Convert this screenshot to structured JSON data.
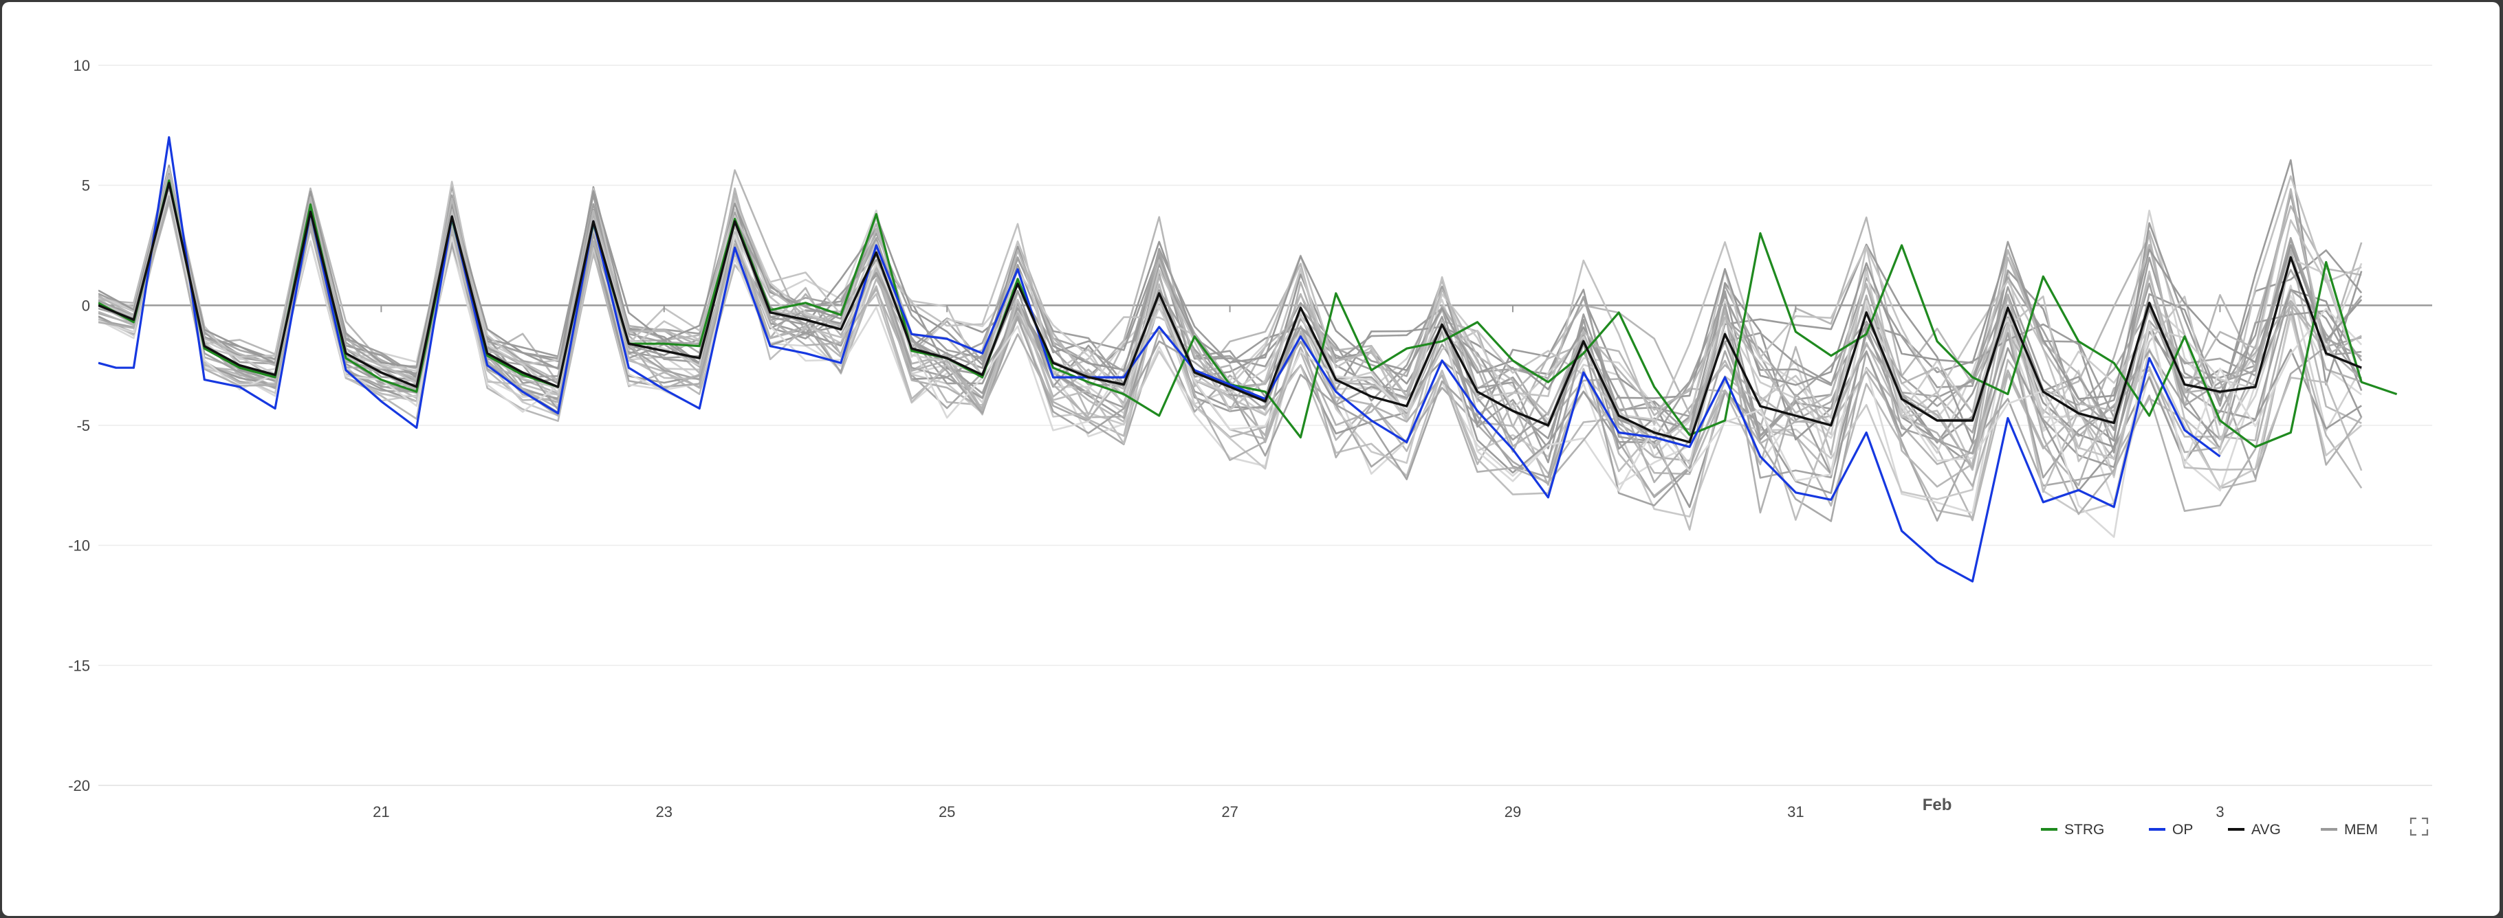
{
  "chart_data": {
    "type": "line",
    "title": "",
    "xlabel": "",
    "ylabel": "",
    "ylim": [
      -20,
      10
    ],
    "yticks": [
      10,
      5,
      0,
      -5,
      -10,
      -15,
      -20
    ],
    "x_start": "2024-01-19",
    "x_end": "2024-02-04",
    "xticks": [
      {
        "date": "2024-01-21",
        "label": "21"
      },
      {
        "date": "2024-01-23",
        "label": "23"
      },
      {
        "date": "2024-01-25",
        "label": "25"
      },
      {
        "date": "2024-01-27",
        "label": "27"
      },
      {
        "date": "2024-01-29",
        "label": "29"
      },
      {
        "date": "2024-01-31",
        "label": "31"
      },
      {
        "date": "2024-02-03",
        "label": "3"
      }
    ],
    "month_label": {
      "date": "2024-02-01",
      "label": "Feb"
    },
    "grid": true,
    "zero_line": true,
    "legend_position": "bottom-right",
    "legend": [
      {
        "name": "STRG",
        "color": "#1f8a1f"
      },
      {
        "name": "OP",
        "color": "#1638e0"
      },
      {
        "name": "AVG",
        "color": "#111111"
      },
      {
        "name": "MEM",
        "color": "#9a9a9a"
      }
    ],
    "series": [
      {
        "name": "STRG",
        "color": "#1f8a1f",
        "width": 3.2,
        "points": [
          [
            "2024-01-19T00:00",
            0.1
          ],
          [
            "2024-01-19T06:00",
            -0.7
          ],
          [
            "2024-01-19T12:00",
            5.2
          ],
          [
            "2024-01-19T18:00",
            -1.8
          ],
          [
            "2024-01-20T00:00",
            -2.6
          ],
          [
            "2024-01-20T06:00",
            -3.0
          ],
          [
            "2024-01-20T12:00",
            4.2
          ],
          [
            "2024-01-20T18:00",
            -2.2
          ],
          [
            "2024-01-21T00:00",
            -3.1
          ],
          [
            "2024-01-21T06:00",
            -3.6
          ],
          [
            "2024-01-21T12:00",
            3.6
          ],
          [
            "2024-01-21T18:00",
            -2.1
          ],
          [
            "2024-01-22T00:00",
            -2.9
          ],
          [
            "2024-01-22T06:00",
            -3.4
          ],
          [
            "2024-01-22T12:00",
            3.4
          ],
          [
            "2024-01-22T18:00",
            -1.6
          ],
          [
            "2024-01-23T00:00",
            -1.6
          ],
          [
            "2024-01-23T06:00",
            -1.7
          ],
          [
            "2024-01-23T12:00",
            3.6
          ],
          [
            "2024-01-23T18:00",
            -0.2
          ],
          [
            "2024-01-24T00:00",
            0.1
          ],
          [
            "2024-01-24T06:00",
            -0.4
          ],
          [
            "2024-01-24T12:00",
            3.8
          ],
          [
            "2024-01-24T18:00",
            -1.9
          ],
          [
            "2024-01-25T00:00",
            -2.2
          ],
          [
            "2024-01-25T06:00",
            -3.0
          ],
          [
            "2024-01-25T12:00",
            1.1
          ],
          [
            "2024-01-25T18:00",
            -2.6
          ],
          [
            "2024-01-26T00:00",
            -3.2
          ],
          [
            "2024-01-26T06:00",
            -3.7
          ],
          [
            "2024-01-26T12:00",
            -4.6
          ],
          [
            "2024-01-26T18:00",
            -1.3
          ],
          [
            "2024-01-27T00:00",
            -3.3
          ],
          [
            "2024-01-27T06:00",
            -3.6
          ],
          [
            "2024-01-27T12:00",
            -5.5
          ],
          [
            "2024-01-27T18:00",
            0.5
          ],
          [
            "2024-01-28T00:00",
            -2.7
          ],
          [
            "2024-01-28T06:00",
            -1.8
          ],
          [
            "2024-01-28T12:00",
            -1.5
          ],
          [
            "2024-01-28T18:00",
            -0.7
          ],
          [
            "2024-01-29T00:00",
            -2.3
          ],
          [
            "2024-01-29T06:00",
            -3.2
          ],
          [
            "2024-01-29T12:00",
            -2.0
          ],
          [
            "2024-01-29T18:00",
            -0.3
          ],
          [
            "2024-01-30T00:00",
            -3.4
          ],
          [
            "2024-01-30T06:00",
            -5.4
          ],
          [
            "2024-01-30T12:00",
            -4.8
          ],
          [
            "2024-01-30T18:00",
            3.0
          ],
          [
            "2024-01-31T00:00",
            -1.1
          ],
          [
            "2024-01-31T06:00",
            -2.1
          ],
          [
            "2024-01-31T12:00",
            -1.2
          ],
          [
            "2024-01-31T18:00",
            2.5
          ],
          [
            "2024-02-01T00:00",
            -1.5
          ],
          [
            "2024-02-01T06:00",
            -3.0
          ],
          [
            "2024-02-01T12:00",
            -3.7
          ],
          [
            "2024-02-01T18:00",
            1.2
          ],
          [
            "2024-02-02T00:00",
            -1.5
          ],
          [
            "2024-02-02T06:00",
            -2.4
          ],
          [
            "2024-02-02T12:00",
            -4.6
          ],
          [
            "2024-02-02T18:00",
            -1.3
          ],
          [
            "2024-02-03T00:00",
            -4.8
          ],
          [
            "2024-02-03T06:00",
            -5.9
          ],
          [
            "2024-02-03T12:00",
            -5.3
          ],
          [
            "2024-02-03T18:00",
            1.8
          ],
          [
            "2024-02-04T00:00",
            -3.2
          ],
          [
            "2024-02-04T06:00",
            -3.7
          ]
        ]
      },
      {
        "name": "OP",
        "color": "#1638e0",
        "width": 3.2,
        "points": [
          [
            "2024-01-19T00:00",
            -2.4
          ],
          [
            "2024-01-19T03:00",
            -2.6
          ],
          [
            "2024-01-19T06:00",
            -2.6
          ],
          [
            "2024-01-19T12:00",
            7.0
          ],
          [
            "2024-01-19T18:00",
            -3.1
          ],
          [
            "2024-01-20T00:00",
            -3.4
          ],
          [
            "2024-01-20T06:00",
            -4.3
          ],
          [
            "2024-01-20T12:00",
            3.9
          ],
          [
            "2024-01-20T18:00",
            -2.7
          ],
          [
            "2024-01-21T00:00",
            -4.0
          ],
          [
            "2024-01-21T06:00",
            -5.1
          ],
          [
            "2024-01-21T12:00",
            3.7
          ],
          [
            "2024-01-21T18:00",
            -2.5
          ],
          [
            "2024-01-22T00:00",
            -3.6
          ],
          [
            "2024-01-22T06:00",
            -4.5
          ],
          [
            "2024-01-22T12:00",
            3.5
          ],
          [
            "2024-01-22T18:00",
            -2.6
          ],
          [
            "2024-01-23T00:00",
            -3.5
          ],
          [
            "2024-01-23T06:00",
            -4.3
          ],
          [
            "2024-01-23T12:00",
            2.4
          ],
          [
            "2024-01-23T18:00",
            -1.7
          ],
          [
            "2024-01-24T00:00",
            -2.0
          ],
          [
            "2024-01-24T06:00",
            -2.4
          ],
          [
            "2024-01-24T12:00",
            2.5
          ],
          [
            "2024-01-24T18:00",
            -1.2
          ],
          [
            "2024-01-25T00:00",
            -1.4
          ],
          [
            "2024-01-25T06:00",
            -2.0
          ],
          [
            "2024-01-25T12:00",
            1.5
          ],
          [
            "2024-01-25T18:00",
            -3.0
          ],
          [
            "2024-01-26T00:00",
            -3.0
          ],
          [
            "2024-01-26T06:00",
            -3.0
          ],
          [
            "2024-01-26T12:00",
            -0.9
          ],
          [
            "2024-01-26T18:00",
            -2.7
          ],
          [
            "2024-01-27T00:00",
            -3.3
          ],
          [
            "2024-01-27T06:00",
            -3.9
          ],
          [
            "2024-01-27T12:00",
            -1.3
          ],
          [
            "2024-01-27T18:00",
            -3.6
          ],
          [
            "2024-01-28T00:00",
            -4.8
          ],
          [
            "2024-01-28T06:00",
            -5.7
          ],
          [
            "2024-01-28T12:00",
            -2.3
          ],
          [
            "2024-01-28T18:00",
            -4.4
          ],
          [
            "2024-01-29T00:00",
            -6.0
          ],
          [
            "2024-01-29T06:00",
            -8.0
          ],
          [
            "2024-01-29T12:00",
            -2.8
          ],
          [
            "2024-01-29T18:00",
            -5.3
          ],
          [
            "2024-01-30T00:00",
            -5.5
          ],
          [
            "2024-01-30T06:00",
            -5.9
          ],
          [
            "2024-01-30T12:00",
            -3.0
          ],
          [
            "2024-01-30T18:00",
            -6.3
          ],
          [
            "2024-01-31T00:00",
            -7.8
          ],
          [
            "2024-01-31T06:00",
            -8.1
          ],
          [
            "2024-01-31T12:00",
            -5.3
          ],
          [
            "2024-01-31T18:00",
            -9.4
          ],
          [
            "2024-02-01T00:00",
            -10.7
          ],
          [
            "2024-02-01T06:00",
            -11.5
          ],
          [
            "2024-02-01T12:00",
            -4.7
          ],
          [
            "2024-02-01T18:00",
            -8.2
          ],
          [
            "2024-02-02T00:00",
            -7.7
          ],
          [
            "2024-02-02T06:00",
            -8.4
          ],
          [
            "2024-02-02T12:00",
            -2.2
          ],
          [
            "2024-02-02T18:00",
            -5.2
          ],
          [
            "2024-02-03T00:00",
            -6.3
          ]
        ]
      },
      {
        "name": "AVG",
        "color": "#111111",
        "width": 3.4,
        "points": [
          [
            "2024-01-19T00:00",
            0.0
          ],
          [
            "2024-01-19T06:00",
            -0.6
          ],
          [
            "2024-01-19T12:00",
            5.1
          ],
          [
            "2024-01-19T18:00",
            -1.7
          ],
          [
            "2024-01-20T00:00",
            -2.5
          ],
          [
            "2024-01-20T06:00",
            -2.9
          ],
          [
            "2024-01-20T12:00",
            3.9
          ],
          [
            "2024-01-20T18:00",
            -2.0
          ],
          [
            "2024-01-21T00:00",
            -2.8
          ],
          [
            "2024-01-21T06:00",
            -3.4
          ],
          [
            "2024-01-21T12:00",
            3.7
          ],
          [
            "2024-01-21T18:00",
            -2.0
          ],
          [
            "2024-01-22T00:00",
            -2.8
          ],
          [
            "2024-01-22T06:00",
            -3.4
          ],
          [
            "2024-01-22T12:00",
            3.5
          ],
          [
            "2024-01-22T18:00",
            -1.6
          ],
          [
            "2024-01-23T00:00",
            -1.9
          ],
          [
            "2024-01-23T06:00",
            -2.2
          ],
          [
            "2024-01-23T12:00",
            3.5
          ],
          [
            "2024-01-23T18:00",
            -0.3
          ],
          [
            "2024-01-24T00:00",
            -0.6
          ],
          [
            "2024-01-24T06:00",
            -1.0
          ],
          [
            "2024-01-24T12:00",
            2.2
          ],
          [
            "2024-01-24T18:00",
            -1.8
          ],
          [
            "2024-01-25T00:00",
            -2.2
          ],
          [
            "2024-01-25T06:00",
            -2.9
          ],
          [
            "2024-01-25T12:00",
            0.9
          ],
          [
            "2024-01-25T18:00",
            -2.4
          ],
          [
            "2024-01-26T00:00",
            -3.0
          ],
          [
            "2024-01-26T06:00",
            -3.3
          ],
          [
            "2024-01-26T12:00",
            0.5
          ],
          [
            "2024-01-26T18:00",
            -2.8
          ],
          [
            "2024-01-27T00:00",
            -3.4
          ],
          [
            "2024-01-27T06:00",
            -4.0
          ],
          [
            "2024-01-27T12:00",
            -0.1
          ],
          [
            "2024-01-27T18:00",
            -3.1
          ],
          [
            "2024-01-28T00:00",
            -3.8
          ],
          [
            "2024-01-28T06:00",
            -4.2
          ],
          [
            "2024-01-28T12:00",
            -0.8
          ],
          [
            "2024-01-28T18:00",
            -3.6
          ],
          [
            "2024-01-29T00:00",
            -4.4
          ],
          [
            "2024-01-29T06:00",
            -5.0
          ],
          [
            "2024-01-29T12:00",
            -1.5
          ],
          [
            "2024-01-29T18:00",
            -4.6
          ],
          [
            "2024-01-30T00:00",
            -5.3
          ],
          [
            "2024-01-30T06:00",
            -5.7
          ],
          [
            "2024-01-30T12:00",
            -1.2
          ],
          [
            "2024-01-30T18:00",
            -4.2
          ],
          [
            "2024-01-31T00:00",
            -4.6
          ],
          [
            "2024-01-31T06:00",
            -5.0
          ],
          [
            "2024-01-31T12:00",
            -0.3
          ],
          [
            "2024-01-31T18:00",
            -3.9
          ],
          [
            "2024-02-01T00:00",
            -4.8
          ],
          [
            "2024-02-01T06:00",
            -4.8
          ],
          [
            "2024-02-01T12:00",
            -0.1
          ],
          [
            "2024-02-01T18:00",
            -3.6
          ],
          [
            "2024-02-02T00:00",
            -4.5
          ],
          [
            "2024-02-02T06:00",
            -4.9
          ],
          [
            "2024-02-02T12:00",
            0.1
          ],
          [
            "2024-02-02T18:00",
            -3.3
          ],
          [
            "2024-02-03T00:00",
            -3.6
          ],
          [
            "2024-02-03T06:00",
            -3.4
          ],
          [
            "2024-02-03T12:00",
            2.0
          ],
          [
            "2024-02-03T18:00",
            -2.0
          ],
          [
            "2024-02-04T00:00",
            -2.6
          ]
        ]
      }
    ]
  }
}
